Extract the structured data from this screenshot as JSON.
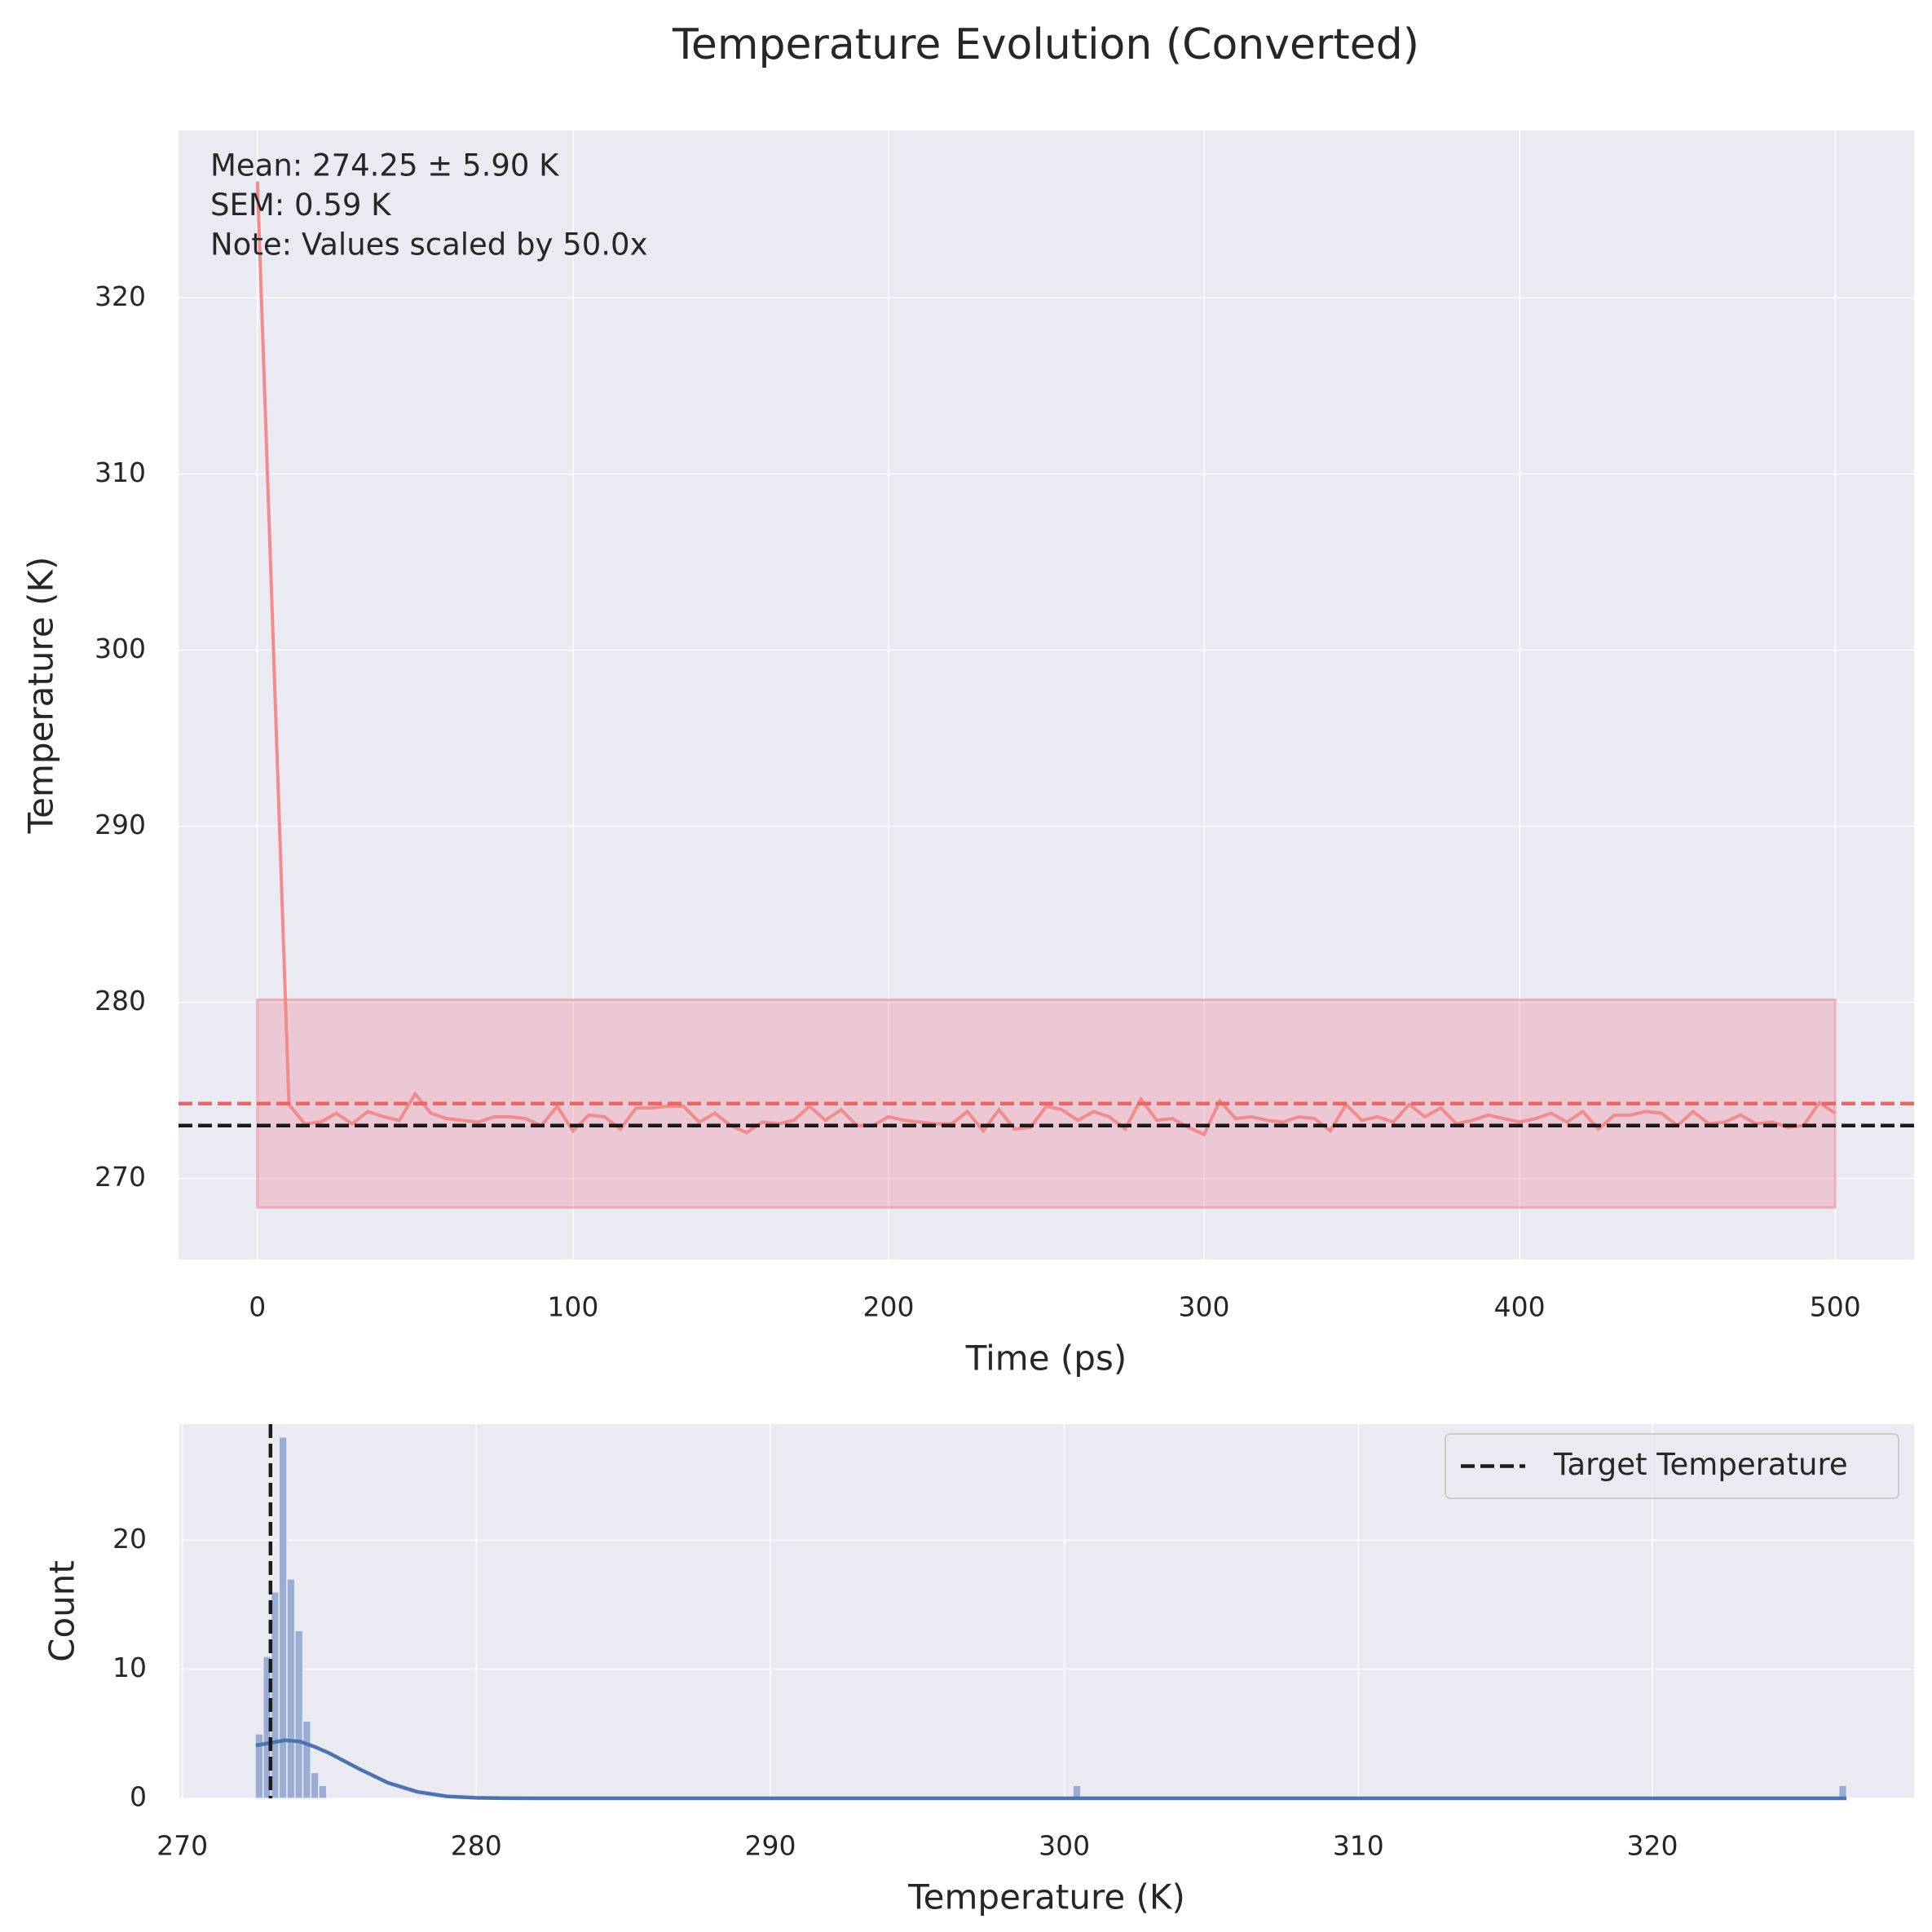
{
  "chart_data": [
    {
      "type": "line",
      "title": "Temperature Evolution (Converted)",
      "x_label": "Time (ps)",
      "y_label": "Temperature (K)",
      "x": [
        0,
        5,
        10,
        15,
        20,
        25,
        30,
        35,
        40,
        45,
        50,
        55,
        60,
        65,
        70,
        75,
        80,
        85,
        90,
        95,
        100,
        105,
        110,
        115,
        120,
        125,
        130,
        135,
        140,
        145,
        150,
        155,
        160,
        165,
        170,
        175,
        180,
        185,
        190,
        195,
        200,
        205,
        210,
        215,
        220,
        225,
        230,
        235,
        240,
        245,
        250,
        255,
        260,
        265,
        270,
        275,
        280,
        285,
        290,
        295,
        300,
        305,
        310,
        315,
        320,
        325,
        330,
        335,
        340,
        345,
        350,
        355,
        360,
        365,
        370,
        375,
        380,
        385,
        390,
        395,
        400,
        405,
        410,
        415,
        420,
        425,
        430,
        435,
        440,
        445,
        450,
        455,
        460,
        465,
        470,
        475,
        480,
        485,
        490,
        495,
        500
      ],
      "series": [
        {
          "color": "#f28b8b",
          "values": [
            326.6,
            300.5,
            274.2,
            273.1,
            273.2,
            273.7,
            273.1,
            273.8,
            273.5,
            273.3,
            274.8,
            273.7,
            273.4,
            273.3,
            273.2,
            273.5,
            273.5,
            273.4,
            273.0,
            274.1,
            272.7,
            273.6,
            273.5,
            272.8,
            274.0,
            274.0,
            274.1,
            274.1,
            273.2,
            273.7,
            273.0,
            272.6,
            273.2,
            273.1,
            273.3,
            274.1,
            273.3,
            273.9,
            273.0,
            273.0,
            273.5,
            273.3,
            273.2,
            273.1,
            273.1,
            273.8,
            272.7,
            273.9,
            272.8,
            272.9,
            274.1,
            273.9,
            273.3,
            273.8,
            273.5,
            272.8,
            274.5,
            273.3,
            273.4,
            272.9,
            272.5,
            274.4,
            273.4,
            273.5,
            273.3,
            273.2,
            273.5,
            273.4,
            272.7,
            274.2,
            273.3,
            273.5,
            273.2,
            274.2,
            273.5,
            274.0,
            273.1,
            273.3,
            273.6,
            273.4,
            273.2,
            273.4,
            273.7,
            273.2,
            273.8,
            272.8,
            273.6,
            273.6,
            273.8,
            273.7,
            273.0,
            273.8,
            273.1,
            273.2,
            273.6,
            273.1,
            273.2,
            272.9,
            273.0,
            274.3,
            273.7
          ]
        }
      ],
      "band": {
        "lower": 268.35,
        "upper": 280.15,
        "color": "#f07c8c"
      },
      "mean_line": {
        "value": 274.25,
        "color": "#ee6464"
      },
      "target_line": {
        "value": 273,
        "color": "#1a1a1a"
      },
      "annotations": [
        "Mean: 274.25 ± 5.90 K",
        "SEM: 0.59 K",
        "Note: Values scaled by 50.0x"
      ],
      "xlim": [
        -25,
        525
      ],
      "xticks": [
        0,
        100,
        200,
        300,
        400,
        500
      ],
      "ylim": [
        265.4,
        329.5
      ],
      "yticks": [
        270,
        280,
        290,
        300,
        310,
        320
      ],
      "grid": true
    },
    {
      "type": "histogram",
      "x_label": "Temperature (K)",
      "y_label": "Count",
      "bins": [
        272.48,
        272.75,
        273.02,
        273.29,
        273.56,
        273.83,
        274.1,
        274.37,
        274.64,
        274.91,
        300.29,
        300.56,
        326.34,
        326.61
      ],
      "counts": [
        5,
        11,
        16,
        28,
        17,
        13,
        6,
        2,
        1,
        0,
        1,
        0,
        1
      ],
      "color": "#9aaed4",
      "kde": {
        "color": "#4c72b0",
        "x": [
          272.5,
          273,
          273.5,
          274,
          274.5,
          275,
          276,
          277,
          278,
          279,
          280,
          281,
          282,
          290,
          300,
          310,
          320,
          326.6
        ],
        "values": [
          4.1,
          4.3,
          4.5,
          4.4,
          4.0,
          3.5,
          2.3,
          1.2,
          0.5,
          0.15,
          0.04,
          0.01,
          0,
          0,
          0,
          0,
          0,
          0
        ]
      },
      "target_line": {
        "name": "Target Temperature",
        "value": 273,
        "color": "#1a1a1a"
      },
      "legend": "upper right",
      "xlim": [
        269.9,
        328.9
      ],
      "xticks": [
        270,
        280,
        290,
        300,
        310,
        320
      ],
      "ylim": [
        0,
        29
      ],
      "yticks": [
        0,
        10,
        20
      ],
      "grid": true
    }
  ]
}
